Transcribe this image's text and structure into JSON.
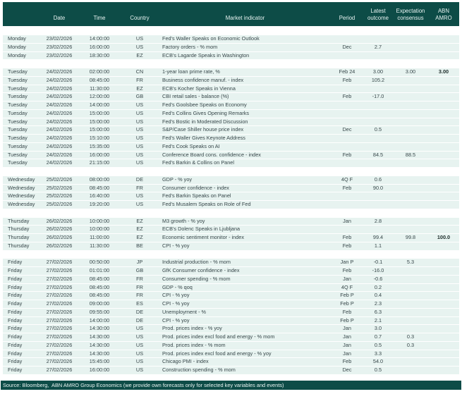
{
  "colors": {
    "header_bg": "#0d4c47",
    "footer_bg": "#0d4c47",
    "row_bg": "#e7f3f0",
    "header_text": "#e9f4f2",
    "body_text": "#37474a",
    "bold_text": "#1c2b29"
  },
  "header": {
    "columns": [
      {
        "key": "day",
        "label": ""
      },
      {
        "key": "date",
        "label": "Date"
      },
      {
        "key": "time",
        "label": "Time"
      },
      {
        "key": "country",
        "label": "Country"
      },
      {
        "key": "indicator",
        "label": "Market indicator"
      },
      {
        "key": "period",
        "label": "Period"
      },
      {
        "key": "latest",
        "label": "Latest\noutcome"
      },
      {
        "key": "consensus",
        "label": "Expectation\nconsensus"
      },
      {
        "key": "abn",
        "label": "ABN\nAMRO"
      }
    ]
  },
  "table": {
    "groups": [
      {
        "day": "Monday",
        "rows": [
          {
            "day": "Monday",
            "date": "23/02/2026",
            "time": "14:00:00",
            "country": "US",
            "indicator": "Fed's Waller Speaks on Economic Outlook",
            "period": "",
            "latest": "",
            "consensus": "",
            "abn": ""
          },
          {
            "day": "Monday",
            "date": "23/02/2026",
            "time": "16:00:00",
            "country": "US",
            "indicator": "Factory orders - % mom",
            "period": "Dec",
            "latest": "2.7",
            "consensus": "",
            "abn": ""
          },
          {
            "day": "Monday",
            "date": "23/02/2026",
            "time": "18:30:00",
            "country": "EZ",
            "indicator": "ECB's Lagarde Speaks in Washington",
            "period": "",
            "latest": "",
            "consensus": "",
            "abn": ""
          }
        ]
      },
      {
        "day": "Tuesday",
        "rows": [
          {
            "day": "Tuesday",
            "date": "24/02/2026",
            "time": "02:00:00",
            "country": "CN",
            "indicator": "1-year loan prime rate, %",
            "period": "Feb 24",
            "latest": "3.00",
            "consensus": "3.00",
            "abn": "3.00"
          },
          {
            "day": "Tuesday",
            "date": "24/02/2026",
            "time": "08:45:00",
            "country": "FR",
            "indicator": "Business confidence manuf. - index",
            "period": "Feb",
            "latest": "105.2",
            "consensus": "",
            "abn": ""
          },
          {
            "day": "Tuesday",
            "date": "24/02/2026",
            "time": "11:30:00",
            "country": "EZ",
            "indicator": "ECB's Kocher Speaks in Vienna",
            "period": "",
            "latest": "",
            "consensus": "",
            "abn": ""
          },
          {
            "day": "Tuesday",
            "date": "24/02/2026",
            "time": "12:00:00",
            "country": "GB",
            "indicator": "CBI retail sales - balance (%)",
            "period": "Feb",
            "latest": "-17.0",
            "consensus": "",
            "abn": ""
          },
          {
            "day": "Tuesday",
            "date": "24/02/2026",
            "time": "14:00:00",
            "country": "US",
            "indicator": "Fed's Goolsbee Speaks on Economy",
            "period": "",
            "latest": "",
            "consensus": "",
            "abn": ""
          },
          {
            "day": "Tuesday",
            "date": "24/02/2026",
            "time": "15:00:00",
            "country": "US",
            "indicator": "Fed's Collins Gives Opening Remarks",
            "period": "",
            "latest": "",
            "consensus": "",
            "abn": ""
          },
          {
            "day": "Tuesday",
            "date": "24/02/2026",
            "time": "15:00:00",
            "country": "US",
            "indicator": "Fed's Bostic in Moderated Discussion",
            "period": "",
            "latest": "",
            "consensus": "",
            "abn": ""
          },
          {
            "day": "Tuesday",
            "date": "24/02/2026",
            "time": "15:00:00",
            "country": "US",
            "indicator": "S&P/Case Shiller house price index",
            "period": "Dec",
            "latest": "0.5",
            "consensus": "",
            "abn": ""
          },
          {
            "day": "Tuesday",
            "date": "24/02/2026",
            "time": "15:10:00",
            "country": "US",
            "indicator": "Fed's Waller Gives Keynote Address",
            "period": "",
            "latest": "",
            "consensus": "",
            "abn": ""
          },
          {
            "day": "Tuesday",
            "date": "24/02/2026",
            "time": "15:35:00",
            "country": "US",
            "indicator": "Fed's Cook Speaks on AI",
            "period": "",
            "latest": "",
            "consensus": "",
            "abn": ""
          },
          {
            "day": "Tuesday",
            "date": "24/02/2026",
            "time": "16:00:00",
            "country": "US",
            "indicator": "Conference Board cons. confidence - index",
            "period": "Feb",
            "latest": "84.5",
            "consensus": "88.5",
            "abn": ""
          },
          {
            "day": "Tuesday",
            "date": "24/02/2026",
            "time": "21:15:00",
            "country": "US",
            "indicator": "Fed's Barkin & Collins on Panel",
            "period": "",
            "latest": "",
            "consensus": "",
            "abn": ""
          }
        ]
      },
      {
        "day": "Wednesday",
        "rows": [
          {
            "day": "Wednesday",
            "date": "25/02/2026",
            "time": "08:00:00",
            "country": "DE",
            "indicator": "GDP - % yoy",
            "period": "4Q F",
            "latest": "0.6",
            "consensus": "",
            "abn": ""
          },
          {
            "day": "Wednesday",
            "date": "25/02/2026",
            "time": "08:45:00",
            "country": "FR",
            "indicator": "Consumer confidence - index",
            "period": "Feb",
            "latest": "90.0",
            "consensus": "",
            "abn": ""
          },
          {
            "day": "Wednesday",
            "date": "25/02/2026",
            "time": "16:40:00",
            "country": "US",
            "indicator": "Fed's Barkin Speaks on Panel",
            "period": "",
            "latest": "",
            "consensus": "",
            "abn": ""
          },
          {
            "day": "Wednesday",
            "date": "25/02/2026",
            "time": "19:20:00",
            "country": "US",
            "indicator": "Fed's Musalem Speaks on Role of Fed",
            "period": "",
            "latest": "",
            "consensus": "",
            "abn": ""
          }
        ]
      },
      {
        "day": "Thursday",
        "rows": [
          {
            "day": "Thursday",
            "date": "26/02/2026",
            "time": "10:00:00",
            "country": "EZ",
            "indicator": "M3 growth - % yoy",
            "period": "Jan",
            "latest": "2.8",
            "consensus": "",
            "abn": ""
          },
          {
            "day": "Thursday",
            "date": "26/02/2026",
            "time": "10:00:00",
            "country": "EZ",
            "indicator": "ECB's Dolenc Speaks in Ljubljana",
            "period": "",
            "latest": "",
            "consensus": "",
            "abn": ""
          },
          {
            "day": "Thursday",
            "date": "26/02/2026",
            "time": "11:00:00",
            "country": "EZ",
            "indicator": "Economic sentiment monitor - index",
            "period": "Feb",
            "latest": "99.4",
            "consensus": "99.8",
            "abn": "100.0"
          },
          {
            "day": "Thursday",
            "date": "26/02/2026",
            "time": "11:30:00",
            "country": "BE",
            "indicator": "CPI - % yoy",
            "period": "Feb",
            "latest": "1.1",
            "consensus": "",
            "abn": ""
          }
        ]
      },
      {
        "day": "Friday",
        "rows": [
          {
            "day": "Friday",
            "date": "27/02/2026",
            "time": "00:50:00",
            "country": "JP",
            "indicator": "Industrial production - % mom",
            "period": "Jan P",
            "latest": "-0.1",
            "consensus": "5.3",
            "abn": ""
          },
          {
            "day": "Friday",
            "date": "27/02/2026",
            "time": "01:01:00",
            "country": "GB",
            "indicator": "GfK Consumer confidence - index",
            "period": "Feb",
            "latest": "-16.0",
            "consensus": "",
            "abn": ""
          },
          {
            "day": "Friday",
            "date": "27/02/2026",
            "time": "08:45:00",
            "country": "FR",
            "indicator": "Consumer spending - % mom",
            "period": "Jan",
            "latest": "-0.6",
            "consensus": "",
            "abn": ""
          },
          {
            "day": "Friday",
            "date": "27/02/2026",
            "time": "08:45:00",
            "country": "FR",
            "indicator": "GDP - % qoq",
            "period": "4Q F",
            "latest": "0.2",
            "consensus": "",
            "abn": ""
          },
          {
            "day": "Friday",
            "date": "27/02/2026",
            "time": "08:45:00",
            "country": "FR",
            "indicator": "CPI - % yoy",
            "period": "Feb P",
            "latest": "0.4",
            "consensus": "",
            "abn": ""
          },
          {
            "day": "Friday",
            "date": "27/02/2026",
            "time": "09:00:00",
            "country": "ES",
            "indicator": "CPI - % yoy",
            "period": "Feb P",
            "latest": "2.3",
            "consensus": "",
            "abn": ""
          },
          {
            "day": "Friday",
            "date": "27/02/2026",
            "time": "09:55:00",
            "country": "DE",
            "indicator": "Unemployment - %",
            "period": "Feb",
            "latest": "6.3",
            "consensus": "",
            "abn": ""
          },
          {
            "day": "Friday",
            "date": "27/02/2026",
            "time": "14:00:00",
            "country": "DE",
            "indicator": "CPI - % yoy",
            "period": "Feb P",
            "latest": "2.1",
            "consensus": "",
            "abn": ""
          },
          {
            "day": "Friday",
            "date": "27/02/2026",
            "time": "14:30:00",
            "country": "US",
            "indicator": "Prod. prices index - % yoy",
            "period": "Jan",
            "latest": "3.0",
            "consensus": "",
            "abn": ""
          },
          {
            "day": "Friday",
            "date": "27/02/2026",
            "time": "14:30:00",
            "country": "US",
            "indicator": "Prod. prices index excl food and energy - % mom",
            "period": "Jan",
            "latest": "0.7",
            "consensus": "0.3",
            "abn": ""
          },
          {
            "day": "Friday",
            "date": "27/02/2026",
            "time": "14:30:00",
            "country": "US",
            "indicator": "Prod. prices index - % mom",
            "period": "Jan",
            "latest": "0.5",
            "consensus": "0.3",
            "abn": ""
          },
          {
            "day": "Friday",
            "date": "27/02/2026",
            "time": "14:30:00",
            "country": "US",
            "indicator": "Prod. prices index excl food and energy - % yoy",
            "period": "Jan",
            "latest": "3.3",
            "consensus": "",
            "abn": ""
          },
          {
            "day": "Friday",
            "date": "27/02/2026",
            "time": "15:45:00",
            "country": "US",
            "indicator": "Chicago PMI - index",
            "period": "Feb",
            "latest": "54.0",
            "consensus": "",
            "abn": ""
          },
          {
            "day": "Friday",
            "date": "27/02/2026",
            "time": "16:00:00",
            "country": "US",
            "indicator": "Construction spending - % mom",
            "period": "Dec",
            "latest": "0.5",
            "consensus": "",
            "abn": ""
          }
        ]
      }
    ]
  },
  "footer": {
    "source": "Source: Bloomberg,  ABN AMRO Group Economics (we provide own forecasts only for selected key variables and events)"
  }
}
